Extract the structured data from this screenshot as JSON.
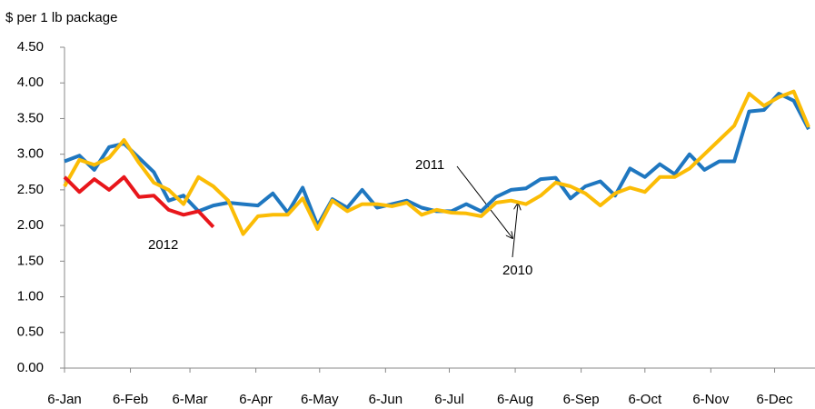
{
  "chart_data": {
    "type": "line",
    "title": "$ per 1 lb package",
    "x": [
      0,
      7,
      14,
      21,
      28,
      35,
      42,
      49,
      56,
      63,
      70,
      77,
      84,
      91,
      98,
      105,
      112,
      119,
      126,
      133,
      140,
      147,
      154,
      161,
      168,
      175,
      182,
      189,
      196,
      203,
      210,
      217,
      224,
      231,
      238,
      245,
      252,
      259,
      266,
      273,
      280,
      287,
      294,
      301,
      308,
      315,
      322,
      329,
      336,
      343,
      350
    ],
    "xlim": [
      0,
      353
    ],
    "xticks": [
      {
        "value": 0,
        "label": "6-Jan"
      },
      {
        "value": 31,
        "label": "6-Feb"
      },
      {
        "value": 59,
        "label": "6-Mar"
      },
      {
        "value": 90,
        "label": "6-Apr"
      },
      {
        "value": 120,
        "label": "6-May"
      },
      {
        "value": 151,
        "label": "6-Jun"
      },
      {
        "value": 181,
        "label": "6-Jul"
      },
      {
        "value": 212,
        "label": "6-Aug"
      },
      {
        "value": 243,
        "label": "6-Sep"
      },
      {
        "value": 273,
        "label": "6-Oct"
      },
      {
        "value": 304,
        "label": "6-Nov"
      },
      {
        "value": 334,
        "label": "6-Dec"
      }
    ],
    "ylim": [
      0,
      4.5
    ],
    "yticks": [
      {
        "value": 0,
        "label": "0.00"
      },
      {
        "value": 0.5,
        "label": "0.50"
      },
      {
        "value": 1,
        "label": "1.00"
      },
      {
        "value": 1.5,
        "label": "1.50"
      },
      {
        "value": 2,
        "label": "2.00"
      },
      {
        "value": 2.5,
        "label": "2.50"
      },
      {
        "value": 3,
        "label": "3.00"
      },
      {
        "value": 3.5,
        "label": "3.50"
      },
      {
        "value": 4,
        "label": "4.00"
      },
      {
        "value": 4.5,
        "label": "4.50"
      }
    ],
    "series": [
      {
        "name": "2011",
        "color": "#1f77c0",
        "values": [
          2.9,
          2.98,
          2.78,
          3.1,
          3.15,
          2.95,
          2.75,
          2.35,
          2.42,
          2.2,
          2.28,
          2.32,
          2.3,
          2.28,
          2.45,
          2.18,
          2.53,
          2.0,
          2.37,
          2.25,
          2.5,
          2.25,
          2.3,
          2.35,
          2.25,
          2.2,
          2.2,
          2.3,
          2.2,
          2.4,
          2.5,
          2.52,
          2.65,
          2.67,
          2.38,
          2.55,
          2.62,
          2.42,
          2.8,
          2.68,
          2.86,
          2.72,
          3.0,
          2.78,
          2.9,
          2.9,
          3.6,
          3.62,
          3.85,
          3.75,
          3.35
        ]
      },
      {
        "name": "2010",
        "color": "#fbbc05",
        "values": [
          2.55,
          2.92,
          2.85,
          2.95,
          3.2,
          2.88,
          2.6,
          2.5,
          2.3,
          2.68,
          2.55,
          2.35,
          1.88,
          2.13,
          2.15,
          2.15,
          2.38,
          1.95,
          2.35,
          2.2,
          2.3,
          2.3,
          2.27,
          2.32,
          2.15,
          2.22,
          2.18,
          2.17,
          2.13,
          2.32,
          2.35,
          2.3,
          2.42,
          2.6,
          2.55,
          2.45,
          2.28,
          2.45,
          2.53,
          2.47,
          2.68,
          2.68,
          2.8,
          3.0,
          3.2,
          3.4,
          3.85,
          3.68,
          3.8,
          3.88,
          3.38
        ]
      },
      {
        "name": "2012",
        "color": "#e8161b",
        "values": [
          2.68,
          2.47,
          2.65,
          2.5,
          2.68,
          2.4,
          2.42,
          2.22,
          2.15,
          2.2,
          1.98,
          null,
          null,
          null,
          null,
          null,
          null,
          null,
          null,
          null,
          null,
          null,
          null,
          null,
          null,
          null,
          null,
          null,
          null,
          null,
          null,
          null,
          null,
          null,
          null,
          null,
          null,
          null,
          null,
          null,
          null,
          null,
          null,
          null,
          null,
          null,
          null,
          null,
          null,
          null,
          null
        ]
      }
    ]
  }
}
